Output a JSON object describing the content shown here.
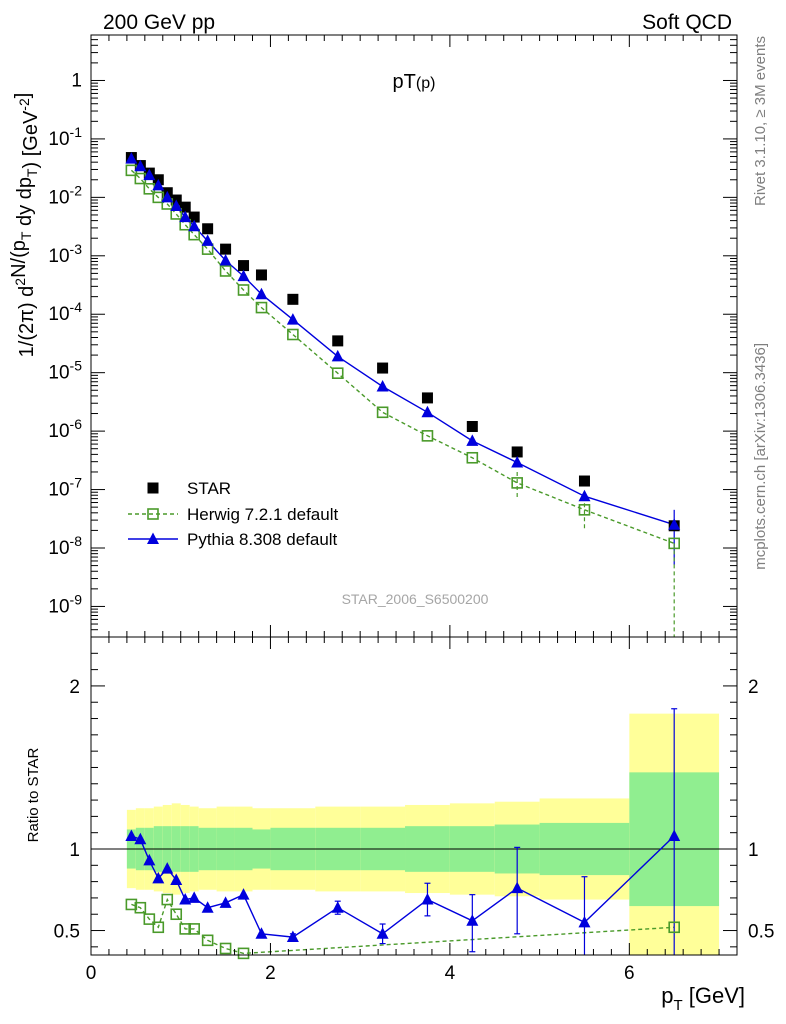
{
  "header": {
    "left": "200 GeV pp",
    "right": "Soft QCD"
  },
  "side_labels": {
    "rivet": "Rivet 3.1.10, ≥ 3M events",
    "source": "mcplots.cern.ch [arXiv:1306.3436]"
  },
  "colors": {
    "star": "#000000",
    "herwig": "#4a9a2a",
    "pythia": "#0000dd",
    "band_inner": "#90ee90",
    "band_outer": "#ffff99"
  },
  "chart_data": [
    {
      "type": "scatter",
      "title": "pT(p)",
      "watermark": "STAR_2006_S6500200",
      "ylabel_parts": [
        "1/(2",
        "π",
        ") d",
        "2",
        "N/(p",
        "T",
        " dy dp",
        "T",
        ") [GeV",
        "-2",
        "]"
      ],
      "yscale": "log",
      "xlim": [
        0,
        7.2
      ],
      "ylim": [
        3e-10,
        6
      ],
      "ytick_labels": [
        "10^-9",
        "10^-8",
        "10^-7",
        "10^-6",
        "10^-5",
        "10^-4",
        "10^-3",
        "10^-2",
        "10^-1",
        "1"
      ],
      "legend": {
        "position": "lower-left",
        "entries": [
          "STAR",
          "Herwig 7.2.1 default",
          "Pythia 8.308 default"
        ]
      },
      "x": [
        0.45,
        0.55,
        0.65,
        0.75,
        0.85,
        0.95,
        1.05,
        1.15,
        1.3,
        1.5,
        1.7,
        1.9,
        2.25,
        2.75,
        3.25,
        3.75,
        4.25,
        4.75,
        5.5,
        6.5
      ],
      "series": [
        {
          "name": "STAR",
          "marker": "filled-square",
          "values": [
            0.048,
            0.035,
            0.026,
            0.02,
            0.012,
            0.009,
            0.0068,
            0.0046,
            0.0029,
            0.0013,
            0.00068,
            0.00047,
            0.00018,
            3.5e-05,
            1.2e-05,
            3.7e-06,
            1.2e-06,
            4.4e-07,
            1.4e-07,
            2.4e-08
          ]
        },
        {
          "name": "Herwig 7.2.1 default",
          "marker": "open-square",
          "line": "dashed",
          "values": [
            0.029,
            0.021,
            0.014,
            0.01,
            0.0077,
            0.0052,
            0.0034,
            0.0023,
            0.0013,
            0.00055,
            0.00026,
            0.00013,
            4.5e-05,
            9.8e-06,
            2.1e-06,
            8.3e-07,
            3.5e-07,
            1.3e-07,
            4.5e-08,
            1.2e-08
          ]
        },
        {
          "name": "Pythia 8.308 default",
          "marker": "filled-triangle",
          "line": "solid",
          "values": [
            0.046,
            0.034,
            0.024,
            0.016,
            0.01,
            0.0071,
            0.0046,
            0.0032,
            0.0018,
            0.00083,
            0.00045,
            0.00022,
            8.1e-05,
            1.9e-05,
            5.8e-06,
            2.1e-06,
            6.8e-07,
            2.9e-07,
            7.7e-08,
            2.5e-08
          ]
        }
      ]
    },
    {
      "type": "scatter",
      "ylabel": "Ratio to STAR",
      "xlabel_parts": [
        "p",
        "T",
        " [GeV]"
      ],
      "xlim": [
        0,
        7.2
      ],
      "ylim": [
        0.35,
        2.3
      ],
      "xticks": [
        "0",
        "2",
        "4",
        "6"
      ],
      "yticks": [
        "0.5",
        "1",
        "2"
      ],
      "bins": [
        {
          "lo": 0.4,
          "hi": 0.5,
          "inner": [
            0.88,
            1.12
          ],
          "outer": [
            0.76,
            1.24
          ]
        },
        {
          "lo": 0.5,
          "hi": 0.6,
          "inner": [
            0.87,
            1.13
          ],
          "outer": [
            0.75,
            1.25
          ]
        },
        {
          "lo": 0.6,
          "hi": 0.7,
          "inner": [
            0.87,
            1.13
          ],
          "outer": [
            0.75,
            1.25
          ]
        },
        {
          "lo": 0.7,
          "hi": 0.8,
          "inner": [
            0.86,
            1.14
          ],
          "outer": [
            0.74,
            1.26
          ]
        },
        {
          "lo": 0.8,
          "hi": 0.9,
          "inner": [
            0.86,
            1.14
          ],
          "outer": [
            0.73,
            1.27
          ]
        },
        {
          "lo": 0.9,
          "hi": 1.0,
          "inner": [
            0.86,
            1.14
          ],
          "outer": [
            0.72,
            1.28
          ]
        },
        {
          "lo": 1.0,
          "hi": 1.1,
          "inner": [
            0.86,
            1.14
          ],
          "outer": [
            0.73,
            1.27
          ]
        },
        {
          "lo": 1.1,
          "hi": 1.2,
          "inner": [
            0.86,
            1.14
          ],
          "outer": [
            0.74,
            1.26
          ]
        },
        {
          "lo": 1.2,
          "hi": 1.4,
          "inner": [
            0.87,
            1.13
          ],
          "outer": [
            0.75,
            1.25
          ]
        },
        {
          "lo": 1.4,
          "hi": 1.6,
          "inner": [
            0.87,
            1.13
          ],
          "outer": [
            0.74,
            1.26
          ]
        },
        {
          "lo": 1.6,
          "hi": 1.8,
          "inner": [
            0.87,
            1.13
          ],
          "outer": [
            0.74,
            1.26
          ]
        },
        {
          "lo": 1.8,
          "hi": 2.0,
          "inner": [
            0.88,
            1.12
          ],
          "outer": [
            0.75,
            1.25
          ]
        },
        {
          "lo": 2.0,
          "hi": 2.5,
          "inner": [
            0.87,
            1.13
          ],
          "outer": [
            0.75,
            1.25
          ]
        },
        {
          "lo": 2.5,
          "hi": 3.0,
          "inner": [
            0.87,
            1.13
          ],
          "outer": [
            0.74,
            1.26
          ]
        },
        {
          "lo": 3.0,
          "hi": 3.5,
          "inner": [
            0.87,
            1.13
          ],
          "outer": [
            0.74,
            1.26
          ]
        },
        {
          "lo": 3.5,
          "hi": 4.0,
          "inner": [
            0.86,
            1.14
          ],
          "outer": [
            0.73,
            1.27
          ]
        },
        {
          "lo": 4.0,
          "hi": 4.5,
          "inner": [
            0.86,
            1.14
          ],
          "outer": [
            0.72,
            1.28
          ]
        },
        {
          "lo": 4.5,
          "hi": 5.0,
          "inner": [
            0.85,
            1.15
          ],
          "outer": [
            0.71,
            1.29
          ]
        },
        {
          "lo": 5.0,
          "hi": 6.0,
          "inner": [
            0.84,
            1.16
          ],
          "outer": [
            0.69,
            1.31
          ]
        },
        {
          "lo": 6.0,
          "hi": 7.0,
          "inner": [
            0.65,
            1.47
          ],
          "outer": [
            0.3,
            1.83
          ]
        }
      ],
      "series": [
        {
          "name": "Herwig 7.2.1 default",
          "marker": "open-square",
          "line": "dashed",
          "x": [
            0.45,
            0.55,
            0.65,
            0.75,
            0.85,
            0.95,
            1.05,
            1.15,
            1.3,
            1.5,
            1.7,
            6.5
          ],
          "values": [
            0.66,
            0.64,
            0.57,
            0.52,
            0.69,
            0.6,
            0.51,
            0.51,
            0.44,
            0.39,
            0.36,
            0.52
          ]
        },
        {
          "name": "Pythia 8.308 default",
          "marker": "filled-triangle",
          "line": "solid",
          "x": [
            0.45,
            0.55,
            0.65,
            0.75,
            0.85,
            0.95,
            1.05,
            1.15,
            1.3,
            1.5,
            1.7,
            1.9,
            2.25,
            2.75,
            3.25,
            3.75,
            4.25,
            4.75,
            5.5,
            6.5
          ],
          "values": [
            1.08,
            1.06,
            0.93,
            0.82,
            0.88,
            0.81,
            0.69,
            0.7,
            0.64,
            0.67,
            0.72,
            0.48,
            0.46,
            0.64,
            0.48,
            0.69,
            0.56,
            0.76,
            0.55,
            1.08
          ],
          "err_low": [
            0,
            0,
            0,
            0,
            0,
            0,
            0,
            0,
            0,
            0,
            0,
            0,
            0.02,
            0.04,
            0.06,
            0.1,
            0.19,
            0.28,
            0.25,
            0.75
          ],
          "err_high": [
            0,
            0,
            0,
            0,
            0,
            0,
            0,
            0,
            0,
            0,
            0,
            0,
            0.02,
            0.04,
            0.06,
            0.1,
            0.16,
            0.25,
            0.28,
            0.78
          ]
        }
      ]
    }
  ]
}
